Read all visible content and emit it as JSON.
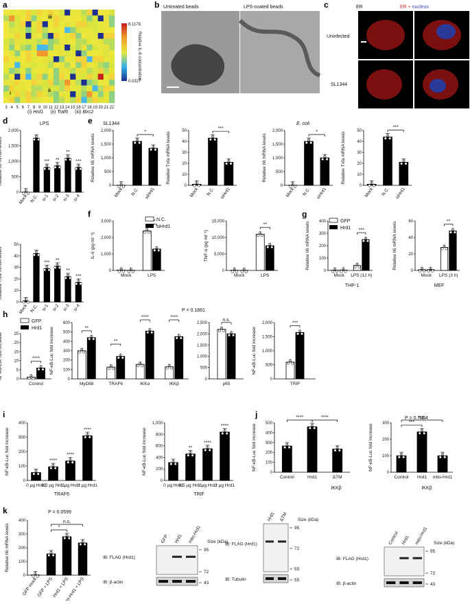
{
  "panels": {
    "a": {
      "label": "a",
      "colorbar": {
        "max": "8.1178",
        "min": "0.0327",
        "title": "Relative IL-6 concentration"
      },
      "ticks": [
        "3",
        "4",
        "5",
        "6",
        "7",
        "8",
        "9",
        "10",
        "11",
        "12",
        "13",
        "14",
        "15",
        "16",
        "17",
        "18",
        "19",
        "20",
        "21",
        "22"
      ],
      "markers": [
        "i",
        "ii",
        "iii"
      ],
      "legend": [
        "(i)",
        "Hrd1",
        "(ii)",
        "Traf6",
        "(iii)",
        "Birc2"
      ]
    },
    "b": {
      "label": "b",
      "left": "Untreated beads",
      "right": "LPS-coated beads"
    },
    "c": {
      "label": "c",
      "col1": "ER",
      "col2": "ER + nucleus",
      "col2_nucleus": "nucleus",
      "row1": "Uninfected",
      "row2": "SL1344"
    },
    "d": {
      "label": "d",
      "title": "LPS"
    },
    "e": {
      "label": "e",
      "title1": "SL1344",
      "title2": "E. coli"
    },
    "f": {
      "label": "f"
    },
    "g": {
      "label": "g",
      "sub1": "THP-1",
      "sub2": "MEF"
    },
    "h": {
      "label": "h",
      "pval": "P = 0.1861"
    },
    "i": {
      "label": "i",
      "sub1": "TRAF6",
      "sub2": "TRIF"
    },
    "j": {
      "label": "j",
      "pval": "P = 0.7804",
      "sub1": "IKKβ",
      "sub2": "IKKβ"
    },
    "k": {
      "label": "k",
      "pval": "P = 0.0599"
    }
  },
  "chart_data": [
    {
      "id": "d1",
      "type": "bar",
      "ylabel": "Relative Il6 mRNA levels",
      "categories": [
        "Mock",
        "N.C.",
        "si-1",
        "si-2",
        "si-3",
        "si-4"
      ],
      "values": [
        5,
        1750,
        800,
        850,
        1100,
        800
      ],
      "ylim": [
        0,
        2000
      ],
      "yticks": [
        "0",
        "500",
        "1,000",
        "1,500",
        "2,000"
      ],
      "sig": [
        "",
        "",
        "***",
        "**",
        "**",
        "***"
      ]
    },
    {
      "id": "d2",
      "type": "bar",
      "ylabel": "Relative Tnfa mRNA levels",
      "categories": [
        "Mock",
        "N.C.",
        "si-1",
        "si-2",
        "si-3",
        "si-4"
      ],
      "values": [
        1,
        42,
        29,
        31,
        22,
        17
      ],
      "ylim": [
        0,
        50
      ],
      "yticks": [
        "0",
        "10",
        "20",
        "30",
        "40",
        "50"
      ],
      "sig": [
        "",
        "",
        "***",
        "**",
        "**",
        "***"
      ]
    },
    {
      "id": "e1",
      "type": "bar",
      "title": "SL1344",
      "ylabel": "Relative Il6 mRNA levels",
      "categories": [
        "Mock",
        "N.C.",
        "siHrd1"
      ],
      "values": [
        5,
        1600,
        1350
      ],
      "ylim": [
        0,
        2000
      ],
      "yticks": [
        "0",
        "500",
        "1,000",
        "1,500",
        "2,000"
      ],
      "brackets": [
        {
          "from": 1,
          "to": 2,
          "label": "*"
        }
      ]
    },
    {
      "id": "e2",
      "type": "bar",
      "ylabel": "Relative Tnfa mRNA levels",
      "categories": [
        "Mock",
        "N.C.",
        "siHrd1"
      ],
      "values": [
        1,
        43,
        21
      ],
      "ylim": [
        0,
        50
      ],
      "yticks": [
        "0",
        "10",
        "20",
        "30",
        "40",
        "50"
      ],
      "brackets": [
        {
          "from": 1,
          "to": 2,
          "label": "***"
        }
      ]
    },
    {
      "id": "e3",
      "type": "bar",
      "title": "E. coli",
      "ylabel": "Relative Il6 mRNA levels",
      "categories": [
        "Mock",
        "N.C.",
        "siHrd1"
      ],
      "values": [
        5,
        1600,
        1000
      ],
      "ylim": [
        0,
        2000
      ],
      "yticks": [
        "0",
        "500",
        "1,000",
        "1,500",
        "2,000"
      ],
      "brackets": [
        {
          "from": 1,
          "to": 2,
          "label": "*"
        }
      ]
    },
    {
      "id": "e4",
      "type": "bar",
      "ylabel": "Relative Tnfa mRNA levels",
      "categories": [
        "Mock",
        "N.C.",
        "siHrd1"
      ],
      "values": [
        1,
        44,
        21
      ],
      "ylim": [
        0,
        50
      ],
      "yticks": [
        "0",
        "10",
        "20",
        "30",
        "40",
        "50"
      ],
      "brackets": [
        {
          "from": 1,
          "to": 2,
          "label": "***"
        }
      ]
    },
    {
      "id": "f1",
      "type": "bar",
      "ylabel": "IL-6 (pg ml⁻¹)",
      "categories": [
        "Mock",
        "LPS"
      ],
      "series": [
        {
          "name": "N.C.",
          "values": [
            20,
            2400
          ]
        },
        {
          "name": "siHrd1",
          "values": [
            10,
            1300
          ]
        }
      ],
      "ylim": [
        0,
        3000
      ],
      "yticks": [
        "0",
        "1,000",
        "2,000",
        "3,000"
      ],
      "brackets": [
        {
          "group": 1,
          "label": "****"
        }
      ]
    },
    {
      "id": "f2",
      "type": "bar",
      "ylabel": "TNF-α (pg ml⁻¹)",
      "categories": [
        "Mock",
        "LPS"
      ],
      "series": [
        {
          "name": "N.C.",
          "values": [
            50,
            11000
          ]
        },
        {
          "name": "siHrd1",
          "values": [
            40,
            7500
          ]
        }
      ],
      "ylim": [
        0,
        15000
      ],
      "yticks": [
        "0",
        "5,000",
        "10,000",
        "15,000"
      ],
      "brackets": [
        {
          "group": 1,
          "label": "**"
        }
      ]
    },
    {
      "id": "g1",
      "type": "bar",
      "ylabel": "Relative Il6 mRNA levels",
      "categories": [
        "Mock",
        "LPS (12 h)"
      ],
      "series": [
        {
          "name": "GFP",
          "values": [
            2,
            40
          ]
        },
        {
          "name": "Hrd1",
          "values": [
            3,
            250
          ]
        }
      ],
      "ylim": [
        0,
        400
      ],
      "yticks": [
        "0",
        "100",
        "200",
        "300",
        "400"
      ],
      "brackets": [
        {
          "group": 1,
          "label": "***"
        }
      ]
    },
    {
      "id": "g2",
      "type": "bar",
      "ylabel": "Relative Il6 mRNA levels",
      "categories": [
        "Mock",
        "LPS (3 h)"
      ],
      "series": [
        {
          "name": "GFP",
          "values": [
            1,
            28
          ]
        },
        {
          "name": "Hrd1",
          "values": [
            1,
            48
          ]
        }
      ],
      "ylim": [
        0,
        60
      ],
      "yticks": [
        "0",
        "20",
        "40",
        "60"
      ],
      "brackets": [
        {
          "group": 1,
          "label": "**"
        }
      ]
    },
    {
      "id": "h1",
      "type": "bar",
      "ylabel": "NF-κB-Luc fold increase",
      "categories": [
        "Control"
      ],
      "series": [
        {
          "name": "GFP",
          "values": [
            1
          ]
        },
        {
          "name": "Hrd1",
          "values": [
            6
          ]
        }
      ],
      "ylim": [
        0,
        25
      ],
      "yticks": [
        "0",
        "5",
        "10",
        "15",
        "20",
        "25"
      ],
      "brackets": [
        {
          "group": 0,
          "label": "****"
        }
      ]
    },
    {
      "id": "h2",
      "type": "bar",
      "ylabel": "NF-κB-Luc fold increase",
      "categories": [
        "MyD88",
        "TRAF6",
        "IKKα",
        "IKKβ"
      ],
      "series": [
        {
          "name": "GFP",
          "values": [
            300,
            125,
            155,
            130
          ]
        },
        {
          "name": "Hrd1",
          "values": [
            440,
            240,
            510,
            450
          ]
        }
      ],
      "ylim": [
        0,
        600
      ],
      "yticks": [
        "0",
        "100",
        "200",
        "300",
        "400",
        "500",
        "600"
      ],
      "brackets": [
        {
          "group": 0,
          "label": "**"
        },
        {
          "group": 1,
          "label": "**"
        },
        {
          "group": 2,
          "label": "****"
        },
        {
          "group": 3,
          "label": "****"
        }
      ]
    },
    {
      "id": "h3",
      "type": "bar",
      "ylabel": "",
      "categories": [
        "p65"
      ],
      "series": [
        {
          "name": "GFP",
          "values": [
            2200
          ]
        },
        {
          "name": "Hrd1",
          "values": [
            2000
          ]
        }
      ],
      "ylim": [
        0,
        2500
      ],
      "yticks": [
        "0",
        "500",
        "1,000",
        "1,500",
        "2,000",
        "2,500"
      ],
      "brackets": [
        {
          "group": 0,
          "label": "n.s."
        }
      ]
    },
    {
      "id": "h4",
      "type": "bar",
      "ylabel": "NF-κB-Luc fold increase",
      "categories": [
        "TRIF"
      ],
      "series": [
        {
          "name": "GFP",
          "values": [
            600
          ]
        },
        {
          "name": "Hrd1",
          "values": [
            1650
          ]
        }
      ],
      "ylim": [
        0,
        2000
      ],
      "yticks": [
        "0",
        "500",
        "1,000",
        "1,500",
        "2,000"
      ],
      "brackets": [
        {
          "group": 0,
          "label": "***"
        }
      ]
    },
    {
      "id": "i1",
      "type": "bar",
      "ylabel": "NF-κB-Luc fold increase",
      "categories": [
        "0 μg Hrd1",
        "0.5 μg Hrd1",
        "1 μg Hrd1",
        "2 μg Hrd1"
      ],
      "values": [
        55,
        95,
        135,
        310
      ],
      "ylim": [
        0,
        400
      ],
      "yticks": [
        "0",
        "100",
        "200",
        "300",
        "400"
      ],
      "sig": [
        "",
        "****",
        "****",
        "****"
      ]
    },
    {
      "id": "i2",
      "type": "bar",
      "ylabel": "NF-κB-Luc fold increase",
      "categories": [
        "0 μg Hrd1",
        "0.5 μg Hrd1",
        "1 μg Hrd1",
        "2 μg Hrd1"
      ],
      "values": [
        310,
        460,
        550,
        840
      ],
      "ylim": [
        0,
        1000
      ],
      "yticks": [
        "0",
        "200",
        "400",
        "600",
        "800",
        "1,000"
      ],
      "sig": [
        "",
        "**",
        "****",
        "****"
      ]
    },
    {
      "id": "j1",
      "type": "bar",
      "ylabel": "NF-κB-Luc fold increase",
      "categories": [
        "Control",
        "Hrd1",
        "ΔTM"
      ],
      "values": [
        265,
        460,
        235
      ],
      "ylim": [
        0,
        500
      ],
      "yticks": [
        "0",
        "100",
        "200",
        "300",
        "400",
        "500"
      ],
      "brackets": [
        {
          "from": 0,
          "to": 1,
          "label": "****"
        },
        {
          "from": 1,
          "to": 2,
          "label": "****"
        }
      ]
    },
    {
      "id": "j2",
      "type": "bar",
      "ylabel": "NF-κB-Luc fold increase",
      "categories": [
        "Control",
        "Hrd1",
        "mito-Hrd1"
      ],
      "values": [
        100,
        245,
        100
      ],
      "ylim": [
        0,
        300
      ],
      "yticks": [
        "0",
        "100",
        "200",
        "300"
      ],
      "brackets": [
        {
          "from": 0,
          "to": 1,
          "label": "***"
        },
        {
          "from": 0,
          "to": 2,
          "label": "n.s."
        }
      ]
    },
    {
      "id": "k1",
      "type": "bar",
      "ylabel": "Relative Il6 mRNA levels",
      "categories": [
        "GFP mock",
        "GFP + LPS",
        "Hrd1 + LPS",
        "mito-Hrd1 + LPS"
      ],
      "values": [
        2,
        155,
        280,
        235
      ],
      "ylim": [
        0,
        400
      ],
      "yticks": [
        "0",
        "100",
        "200",
        "300",
        "400"
      ],
      "brackets": [
        {
          "from": 1,
          "to": 2,
          "label": "*"
        },
        {
          "from": 1,
          "to": 3,
          "label": "n.s."
        }
      ]
    }
  ],
  "blots": [
    {
      "id": "blot1",
      "lanes": [
        "GFP",
        "Hrd1",
        "mito-Hrd1"
      ],
      "size_title": "Size (kDa)",
      "sizes": [
        "95",
        "72",
        "43"
      ],
      "rows": [
        "IB: FLAG (Hrd1)",
        "IB: β-actin"
      ]
    },
    {
      "id": "blot2",
      "lanes": [
        "Hrd1",
        "ΔTM"
      ],
      "size_title": "Size (kDa)",
      "sizes": [
        "95",
        "72",
        "55",
        "55"
      ],
      "rows": [
        "IB: FLAG (Hrd1)",
        "IB: Tubulin"
      ]
    },
    {
      "id": "blot3",
      "lanes": [
        "Control",
        "Hrd1",
        "mito-Hrd1"
      ],
      "size_title": "Size (kDa)",
      "sizes": [
        "95",
        "72",
        "43"
      ],
      "rows": [
        "IB: FLAG (Hrd1)",
        "IB: β-actin"
      ]
    }
  ]
}
